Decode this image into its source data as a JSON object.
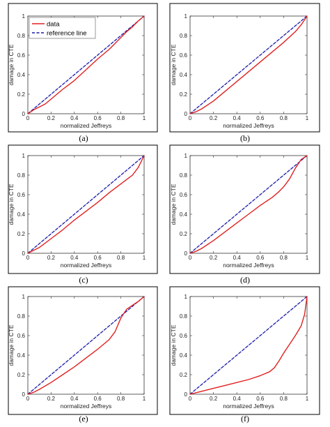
{
  "chart_data": [
    {
      "type": "line",
      "label": "(a)",
      "xlabel": "normalized Jeffreys",
      "ylabel": "damage in CTE",
      "xlim": [
        0,
        1
      ],
      "ylim": [
        0,
        1
      ],
      "xticks": [
        "0",
        "0.2",
        "0.4",
        "0.6",
        "0.8",
        "1"
      ],
      "yticks": [
        "0",
        "0.2",
        "0.4",
        "0.6",
        "0.8",
        "1"
      ],
      "grid": false,
      "legend_position": "top-left",
      "series": [
        {
          "name": "data",
          "color": "#e02020",
          "style": "solid",
          "x": [
            0,
            0.05,
            0.1,
            0.15,
            0.2,
            0.3,
            0.4,
            0.5,
            0.6,
            0.7,
            0.75,
            0.8,
            0.85,
            0.9,
            0.95,
            1.0
          ],
          "y": [
            0,
            0.04,
            0.07,
            0.1,
            0.15,
            0.25,
            0.34,
            0.45,
            0.56,
            0.66,
            0.72,
            0.78,
            0.84,
            0.89,
            0.95,
            1.0
          ]
        },
        {
          "name": "reference line",
          "color": "#1a1aaa",
          "style": "dashed",
          "x": [
            0,
            1
          ],
          "y": [
            0,
            1
          ]
        }
      ]
    },
    {
      "type": "line",
      "label": "(b)",
      "xlabel": "normalized Jeffreys",
      "ylabel": "damage in CTE",
      "xlim": [
        0,
        1
      ],
      "ylim": [
        0,
        1
      ],
      "xticks": [
        "0",
        "0.2",
        "0.4",
        "0.6",
        "0.8",
        "1"
      ],
      "yticks": [
        "0",
        "0.2",
        "0.4",
        "0.6",
        "0.8",
        "1"
      ],
      "grid": false,
      "series": [
        {
          "name": "data",
          "color": "#e02020",
          "style": "solid",
          "x": [
            0,
            0.05,
            0.1,
            0.2,
            0.3,
            0.4,
            0.5,
            0.6,
            0.7,
            0.8,
            0.9,
            0.95,
            1.0
          ],
          "y": [
            0,
            0.02,
            0.05,
            0.13,
            0.23,
            0.33,
            0.43,
            0.53,
            0.63,
            0.73,
            0.84,
            0.91,
            1.0
          ]
        },
        {
          "name": "reference line",
          "color": "#1a1aaa",
          "style": "dashed",
          "x": [
            0,
            1
          ],
          "y": [
            0,
            1
          ]
        }
      ]
    },
    {
      "type": "line",
      "label": "(c)",
      "xlabel": "normalized Jeffreys",
      "ylabel": "damage in CTE",
      "xlim": [
        0,
        1
      ],
      "ylim": [
        0,
        1
      ],
      "xticks": [
        "0",
        "0.2",
        "0.4",
        "0.6",
        "0.8",
        "1"
      ],
      "yticks": [
        "0",
        "0.2",
        "0.4",
        "0.6",
        "0.8",
        "1"
      ],
      "grid": false,
      "series": [
        {
          "name": "data",
          "color": "#e02020",
          "style": "solid",
          "x": [
            0,
            0.05,
            0.1,
            0.2,
            0.3,
            0.4,
            0.5,
            0.6,
            0.7,
            0.8,
            0.9,
            0.95,
            1.0
          ],
          "y": [
            0,
            0.03,
            0.06,
            0.15,
            0.24,
            0.34,
            0.43,
            0.52,
            0.62,
            0.71,
            0.8,
            0.88,
            1.0
          ]
        },
        {
          "name": "reference line",
          "color": "#1a1aaa",
          "style": "dashed",
          "x": [
            0,
            1
          ],
          "y": [
            0,
            1
          ]
        }
      ]
    },
    {
      "type": "line",
      "label": "(d)",
      "xlabel": "normalized Jeffreys",
      "ylabel": "damage in CTE",
      "xlim": [
        0,
        1
      ],
      "ylim": [
        0,
        1
      ],
      "xticks": [
        "0",
        "0.2",
        "0.4",
        "0.6",
        "0.8",
        "1"
      ],
      "yticks": [
        "0",
        "0.2",
        "0.4",
        "0.6",
        "0.8",
        "1"
      ],
      "grid": false,
      "series": [
        {
          "name": "data",
          "color": "#e02020",
          "style": "solid",
          "x": [
            0,
            0.05,
            0.1,
            0.2,
            0.3,
            0.4,
            0.5,
            0.6,
            0.7,
            0.75,
            0.8,
            0.85,
            0.9,
            0.95,
            1.0
          ],
          "y": [
            0,
            0.02,
            0.05,
            0.13,
            0.22,
            0.31,
            0.4,
            0.49,
            0.57,
            0.62,
            0.68,
            0.76,
            0.87,
            0.96,
            1.0
          ]
        },
        {
          "name": "reference line",
          "color": "#1a1aaa",
          "style": "dashed",
          "x": [
            0,
            1
          ],
          "y": [
            0,
            1
          ]
        }
      ]
    },
    {
      "type": "line",
      "label": "(e)",
      "xlabel": "normalized Jeffreys",
      "ylabel": "damage in CTE",
      "xlim": [
        0,
        1
      ],
      "ylim": [
        0,
        1
      ],
      "xticks": [
        "0",
        "0.2",
        "0.4",
        "0.6",
        "0.8",
        "1"
      ],
      "yticks": [
        "0",
        "0.2",
        "0.4",
        "0.6",
        "0.8",
        "1"
      ],
      "grid": false,
      "series": [
        {
          "name": "data",
          "color": "#e02020",
          "style": "solid",
          "x": [
            0,
            0.05,
            0.1,
            0.2,
            0.3,
            0.4,
            0.5,
            0.6,
            0.7,
            0.75,
            0.8,
            0.85,
            0.9,
            0.95,
            1.0
          ],
          "y": [
            0,
            0.02,
            0.05,
            0.12,
            0.2,
            0.28,
            0.37,
            0.46,
            0.56,
            0.64,
            0.78,
            0.87,
            0.91,
            0.95,
            1.0
          ]
        },
        {
          "name": "reference line",
          "color": "#1a1aaa",
          "style": "dashed",
          "x": [
            0,
            1
          ],
          "y": [
            0,
            1
          ]
        }
      ]
    },
    {
      "type": "line",
      "label": "(f)",
      "xlabel": "normalized Jeffreys",
      "ylabel": "damage in CTE",
      "xlim": [
        0,
        1
      ],
      "ylim": [
        0,
        1
      ],
      "xticks": [
        "0",
        "0.2",
        "0.4",
        "0.6",
        "0.8",
        "1"
      ],
      "yticks": [
        "0",
        "0.2",
        "0.4",
        "0.6",
        "0.8",
        "1"
      ],
      "grid": false,
      "series": [
        {
          "name": "data",
          "color": "#e02020",
          "style": "solid",
          "x": [
            0,
            0.1,
            0.2,
            0.3,
            0.4,
            0.5,
            0.6,
            0.68,
            0.72,
            0.76,
            0.8,
            0.85,
            0.9,
            0.95,
            0.98,
            1.0
          ],
          "y": [
            0,
            0.03,
            0.06,
            0.09,
            0.12,
            0.15,
            0.19,
            0.23,
            0.27,
            0.34,
            0.42,
            0.51,
            0.6,
            0.7,
            0.82,
            1.0
          ]
        },
        {
          "name": "reference line",
          "color": "#1a1aaa",
          "style": "dashed",
          "x": [
            0,
            1
          ],
          "y": [
            0,
            1
          ]
        }
      ]
    }
  ]
}
